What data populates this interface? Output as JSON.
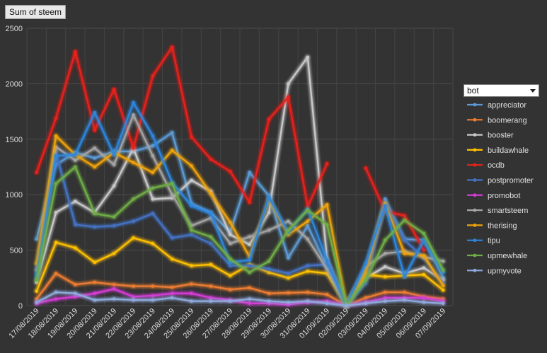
{
  "pivot": {
    "field_button": "Sum of steem",
    "legend_field": "bot"
  },
  "chart_data": {
    "type": "line",
    "ylim": [
      0,
      2500
    ],
    "yticks": [
      0,
      500,
      1000,
      1500,
      2000,
      2500
    ],
    "grid": true,
    "legend": "right",
    "categories": [
      "17/08/2019",
      "18/08/2019",
      "19/08/2019",
      "20/08/2019",
      "21/08/2019",
      "22/08/2019",
      "23/08/2019",
      "24/08/2019",
      "25/08/2019",
      "26/08/2019",
      "27/08/2019",
      "28/08/2019",
      "29/08/2019",
      "30/08/2019",
      "31/08/2019",
      "01/09/2019",
      "02/09/2019",
      "03/09/2019",
      "04/09/2019",
      "05/09/2019",
      "06/09/2019",
      "07/09/2019"
    ],
    "series": [
      {
        "name": "appreciator",
        "color": "#5b9bd5",
        "values": [
          600,
          1270,
          1380,
          1330,
          1390,
          1390,
          1440,
          1560,
          920,
          840,
          660,
          1200,
          990,
          430,
          720,
          350,
          0,
          330,
          960,
          600,
          590,
          250
        ]
      },
      {
        "name": "boomerang",
        "color": "#ed7d31",
        "values": [
          60,
          290,
          190,
          210,
          190,
          175,
          175,
          165,
          195,
          175,
          145,
          160,
          110,
          115,
          120,
          100,
          0,
          70,
          120,
          120,
          80,
          60
        ]
      },
      {
        "name": "booster",
        "color": "#c9c9c9",
        "values": [
          210,
          840,
          940,
          840,
          1080,
          1420,
          960,
          970,
          1130,
          1030,
          640,
          550,
          840,
          2000,
          2240,
          420,
          0,
          250,
          350,
          290,
          340,
          230
        ]
      },
      {
        "name": "buildawhale",
        "color": "#ffc000",
        "values": [
          130,
          570,
          520,
          390,
          470,
          610,
          560,
          420,
          360,
          370,
          270,
          370,
          300,
          250,
          310,
          290,
          0,
          280,
          260,
          270,
          280,
          140
        ]
      },
      {
        "name": "ocdb",
        "color": "#e8231b",
        "values": [
          1200,
          1690,
          2290,
          1580,
          1950,
          1420,
          2070,
          2330,
          1520,
          1320,
          1210,
          930,
          1680,
          1880,
          890,
          1280,
          null,
          1240,
          850,
          810,
          500,
          null
        ]
      },
      {
        "name": "postpromoter",
        "color": "#4472c4",
        "values": [
          280,
          1380,
          730,
          710,
          720,
          760,
          830,
          610,
          640,
          560,
          360,
          360,
          330,
          290,
          360,
          370,
          0,
          200,
          920,
          590,
          430,
          200
        ]
      },
      {
        "name": "promobot",
        "color": "#d63bd6",
        "values": [
          20,
          60,
          80,
          110,
          150,
          80,
          90,
          110,
          110,
          70,
          50,
          20,
          20,
          10,
          30,
          40,
          0,
          30,
          70,
          70,
          70,
          40
        ]
      },
      {
        "name": "smartsteem",
        "color": "#a5a5a5",
        "values": [
          320,
          1430,
          1310,
          1420,
          1270,
          1720,
          1350,
          1000,
          720,
          790,
          560,
          620,
          680,
          760,
          600,
          330,
          0,
          350,
          470,
          490,
          440,
          400
        ]
      },
      {
        "name": "therising",
        "color": "#f0a30a",
        "values": [
          380,
          1530,
          1360,
          1250,
          1380,
          1290,
          1200,
          1400,
          1260,
          1010,
          750,
          440,
          960,
          640,
          760,
          910,
          0,
          300,
          920,
          470,
          450,
          180
        ]
      },
      {
        "name": "tipu",
        "color": "#2e86de",
        "values": [
          250,
          1350,
          1360,
          1740,
          1360,
          1830,
          1530,
          1110,
          900,
          830,
          390,
          410,
          980,
          660,
          870,
          410,
          0,
          380,
          900,
          260,
          590,
          300
        ]
      },
      {
        "name": "upmewhale",
        "color": "#70ad47",
        "values": [
          230,
          1100,
          1250,
          830,
          800,
          960,
          1060,
          1100,
          680,
          620,
          420,
          300,
          400,
          680,
          860,
          730,
          0,
          230,
          590,
          770,
          650,
          320
        ]
      },
      {
        "name": "upmyvote",
        "color": "#8faadc",
        "values": [
          30,
          120,
          110,
          50,
          60,
          50,
          50,
          70,
          40,
          40,
          40,
          60,
          40,
          30,
          40,
          20,
          0,
          20,
          40,
          50,
          30,
          20
        ]
      }
    ]
  }
}
